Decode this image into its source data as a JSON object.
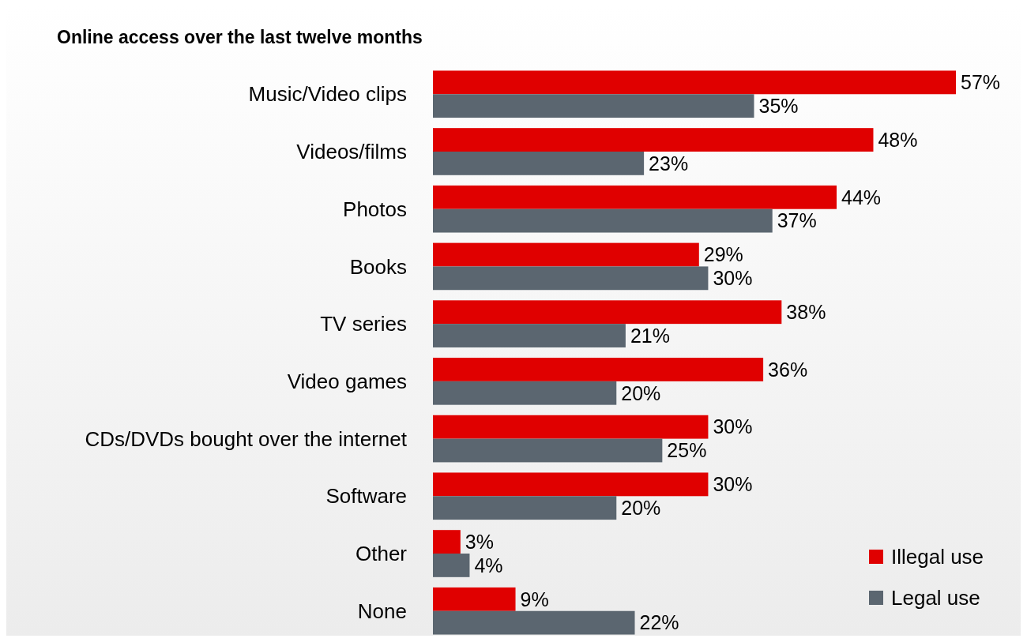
{
  "chart_data": {
    "type": "bar",
    "orientation": "horizontal",
    "title": "Online access over the last twelve months",
    "categories": [
      "Music/Video clips",
      "Videos/films",
      "Photos",
      "Books",
      "TV series",
      "Video games",
      "CDs/DVDs bought over the internet",
      "Software",
      "Other",
      "None"
    ],
    "series": [
      {
        "name": "Illegal use",
        "color": "#e00000",
        "values": [
          57,
          48,
          44,
          29,
          38,
          36,
          30,
          30,
          3,
          9
        ],
        "value_labels": [
          "57%",
          "48%",
          "44%",
          "29%",
          "38%",
          "36%",
          "30%",
          "30%",
          "3%",
          "9%"
        ]
      },
      {
        "name": "Legal use",
        "color": "#5b6670",
        "values": [
          35,
          23,
          37,
          30,
          21,
          20,
          25,
          20,
          4,
          22
        ],
        "value_labels": [
          "35%",
          "23%",
          "37%",
          "30%",
          "21%",
          "20%",
          "25%",
          "20%",
          "4%",
          "22%"
        ]
      }
    ],
    "legend": "bottom right"
  }
}
